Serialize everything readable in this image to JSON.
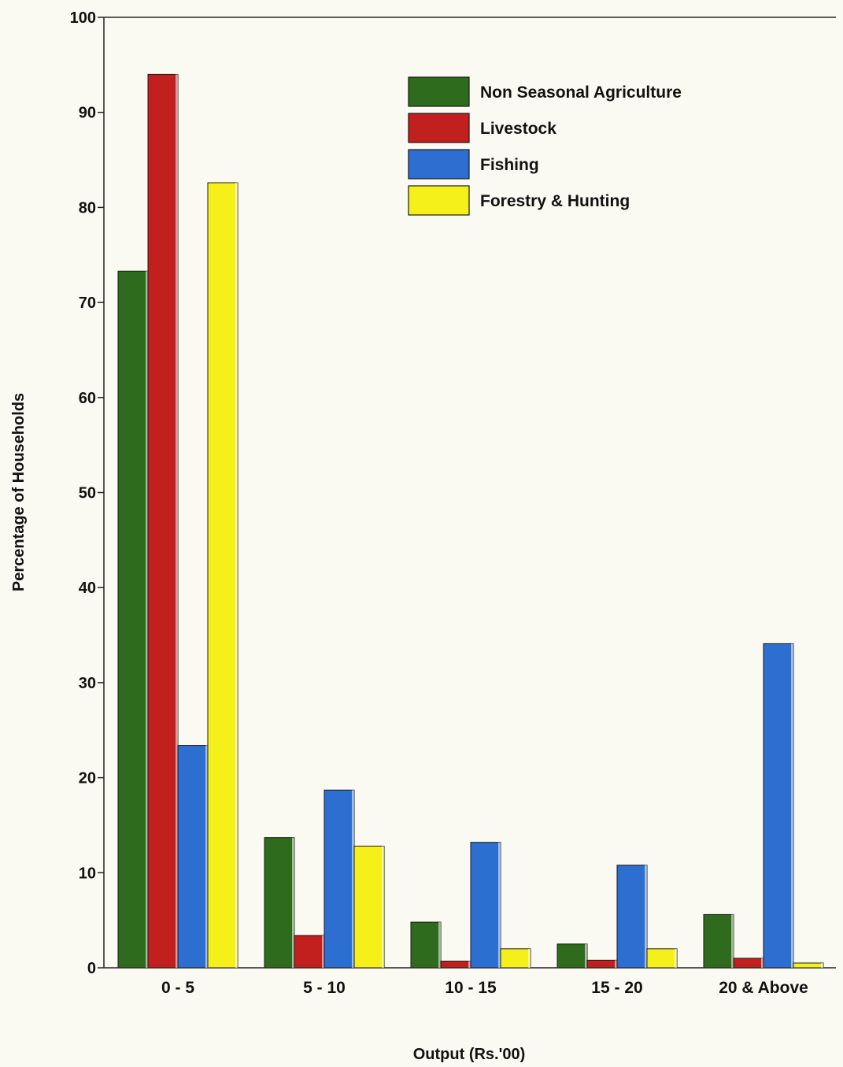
{
  "chart_data": {
    "type": "bar",
    "title": "",
    "xlabel": "Output (Rs.'00)",
    "ylabel": "Percentage of Households",
    "ylim": [
      0,
      100
    ],
    "yticks": [
      0,
      10,
      20,
      30,
      40,
      50,
      60,
      70,
      80,
      90,
      100
    ],
    "categories": [
      "0 - 5",
      "5 - 10",
      "10 - 15",
      "15 - 20",
      "20 & Above"
    ],
    "series": [
      {
        "name": "Non Seasonal Agriculture",
        "color": "#2f6b1c",
        "values": [
          73.3,
          13.7,
          4.8,
          2.5,
          5.6
        ]
      },
      {
        "name": "Livestock",
        "color": "#c21f1f",
        "values": [
          94,
          3.4,
          0.7,
          0.8,
          1.0
        ]
      },
      {
        "name": "Fishing",
        "color": "#2c6fd1",
        "values": [
          23.4,
          18.7,
          13.2,
          10.8,
          34.1
        ]
      },
      {
        "name": "Forestry & Hunting",
        "color": "#f5ef1a",
        "values": [
          82.6,
          12.8,
          2.0,
          2.0,
          0.5
        ]
      }
    ],
    "legend_position": "top-right",
    "grid": false
  }
}
